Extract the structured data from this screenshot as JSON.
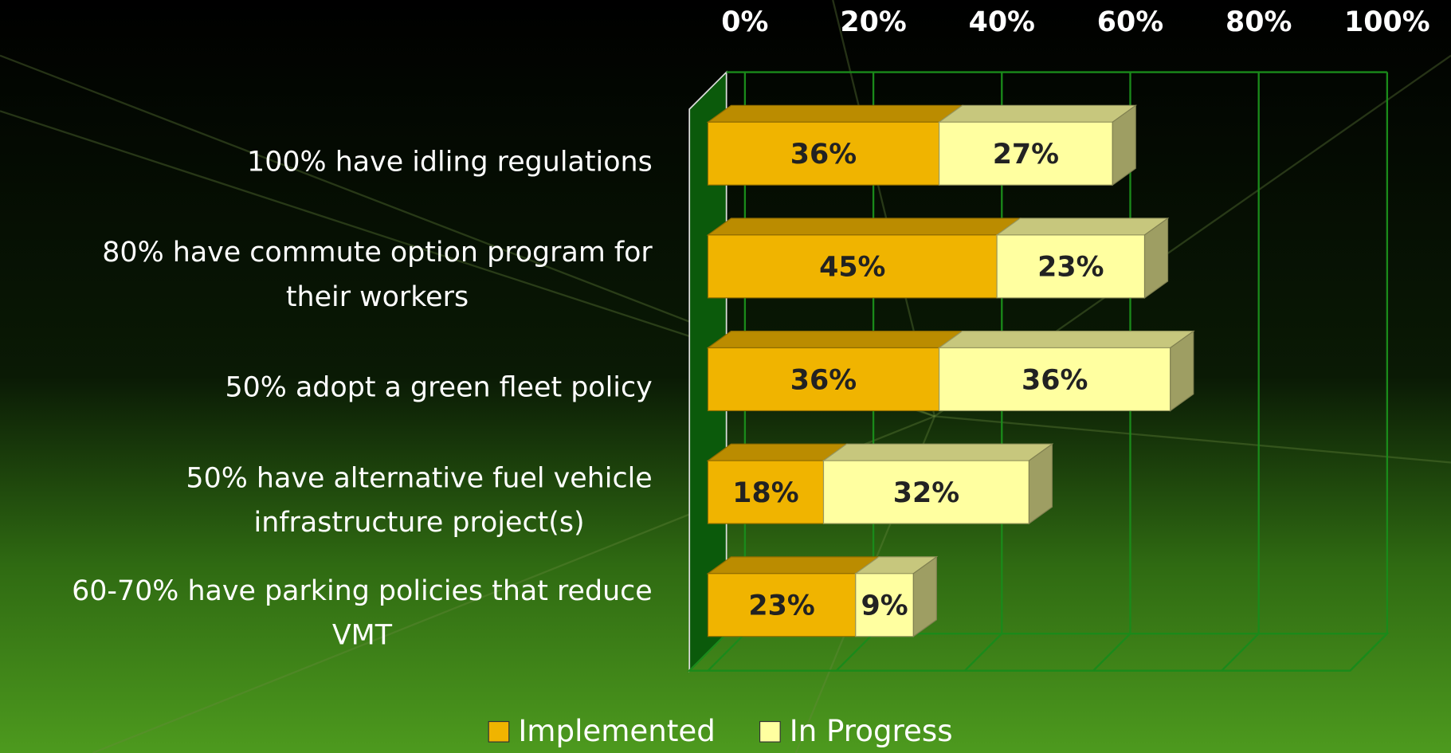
{
  "chart_data": {
    "type": "stacked-bar-3d",
    "categories": [
      [
        "100% have idling regulations"
      ],
      [
        "80% have commute option program for",
        "their workers"
      ],
      [
        "50% adopt a green fleet policy"
      ],
      [
        "50% have alternative fuel vehicle",
        "infrastructure project(s)"
      ],
      [
        "60-70% have parking policies that reduce",
        "VMT"
      ]
    ],
    "series": [
      {
        "name": "Implemented",
        "color": "#f0b400",
        "values": [
          36,
          45,
          36,
          18,
          23
        ],
        "value_labels": [
          "36%",
          "45%",
          "36%",
          "18%",
          "23%"
        ]
      },
      {
        "name": "In Progress",
        "color": "#ffffa0",
        "values": [
          27,
          23,
          36,
          32,
          9
        ],
        "value_labels": [
          "27%",
          "23%",
          "36%",
          "32%",
          "9%"
        ]
      }
    ],
    "xlim": [
      0,
      100
    ],
    "xticks": [
      {
        "value": 0,
        "label": "0%"
      },
      {
        "value": 20,
        "label": "20%"
      },
      {
        "value": 40,
        "label": "40%"
      },
      {
        "value": 60,
        "label": "60%"
      },
      {
        "value": 80,
        "label": "80%"
      },
      {
        "value": 100,
        "label": "100%"
      }
    ],
    "grid": true,
    "legend": "bottom"
  }
}
